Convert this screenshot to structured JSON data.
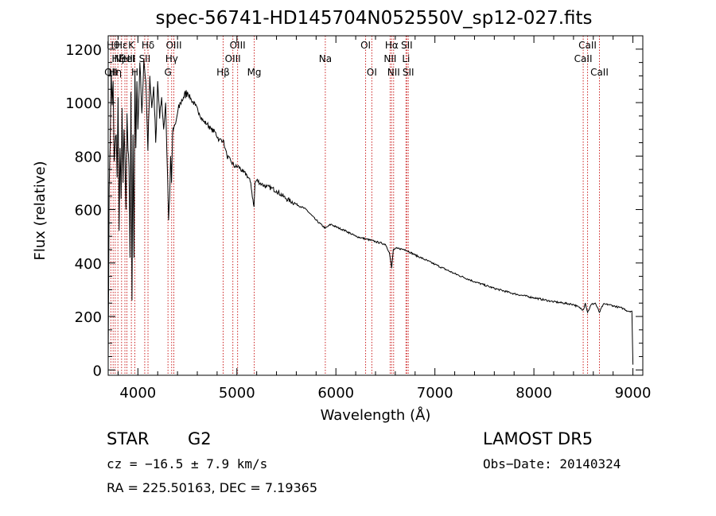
{
  "chart_data": {
    "type": "line",
    "title": "spec-56741-HD145704N052550V_sp12-027.fits",
    "xlabel": "Wavelength (Å)",
    "ylabel": "Flux (relative)",
    "xlim": [
      3700,
      9100
    ],
    "ylim": [
      -20,
      1250
    ],
    "xticks": [
      4000,
      5000,
      6000,
      7000,
      8000,
      9000
    ],
    "yticks": [
      0,
      200,
      400,
      600,
      800,
      1000,
      1200
    ],
    "series": [
      {
        "x": [
          3700,
          3710,
          3720,
          3730,
          3740,
          3750,
          3760,
          3770,
          3780,
          3790,
          3800,
          3810,
          3820,
          3830,
          3840,
          3850,
          3860,
          3870,
          3880,
          3890,
          3900,
          3910,
          3920,
          3930,
          3940,
          3950,
          3960,
          3970,
          3980,
          3990,
          4000,
          4020,
          4040,
          4060,
          4080,
          4101,
          4120,
          4140,
          4160,
          4180,
          4200,
          4220,
          4240,
          4260,
          4280,
          4300,
          4310,
          4320,
          4330,
          4340,
          4350,
          4360,
          4380,
          4400,
          4430,
          4460,
          4500,
          4540,
          4580,
          4620,
          4660,
          4700,
          4740,
          4780,
          4820,
          4861,
          4880,
          4900,
          4940,
          4980,
          5020,
          5060,
          5100,
          5140,
          5167,
          5173,
          5183,
          5200,
          5250,
          5300,
          5350,
          5400,
          5500,
          5600,
          5700,
          5800,
          5893,
          5950,
          6000,
          6100,
          6200,
          6300,
          6400,
          6500,
          6540,
          6563,
          6580,
          6620,
          6700,
          6800,
          7000,
          7200,
          7400,
          7600,
          7800,
          8000,
          8200,
          8400,
          8498,
          8520,
          8542,
          8580,
          8620,
          8662,
          8700,
          8750,
          8800,
          8850,
          8900,
          8950,
          8990,
          9000
        ],
        "y": [
          40,
          680,
          850,
          1120,
          990,
          1080,
          780,
          850,
          880,
          720,
          1020,
          520,
          830,
          640,
          980,
          700,
          900,
          780,
          600,
          960,
          820,
          760,
          420,
          1040,
          260,
          880,
          420,
          1120,
          830,
          1080,
          900,
          1150,
          960,
          1160,
          1080,
          820,
          1100,
          980,
          1060,
          850,
          1080,
          940,
          1020,
          900,
          1000,
          720,
          560,
          640,
          800,
          700,
          880,
          900,
          920,
          960,
          1000,
          1020,
          1040,
          1010,
          990,
          960,
          930,
          920,
          900,
          890,
          860,
          860,
          830,
          800,
          780,
          760,
          760,
          740,
          730,
          700,
          620,
          610,
          700,
          710,
          695,
          685,
          680,
          670,
          640,
          620,
          600,
          560,
          530,
          545,
          535,
          520,
          500,
          490,
          480,
          470,
          440,
          380,
          450,
          455,
          450,
          430,
          395,
          360,
          330,
          305,
          285,
          270,
          255,
          245,
          225,
          250,
          215,
          245,
          250,
          215,
          245,
          245,
          240,
          235,
          230,
          220,
          220,
          20
        ]
      }
    ],
    "lines": [
      {
        "w": 3727,
        "label": "OII",
        "row": 3
      },
      {
        "w": 3750,
        "label": "Hθ",
        "row": 1
      },
      {
        "w": 3771,
        "label": "Hη",
        "row": 3
      },
      {
        "w": 3798,
        "label": "Hζ",
        "row": 2
      },
      {
        "w": 3835,
        "label": "Hε",
        "row": 1
      },
      {
        "w": 3869,
        "label": "NeIII",
        "row": 2
      },
      {
        "w": 3889,
        "label": "HeI",
        "row": 2
      },
      {
        "w": 3934,
        "label": "K",
        "row": 1
      },
      {
        "w": 3969,
        "label": "H",
        "row": 3
      },
      {
        "w": 4102,
        "label": "Hδ",
        "row": 1
      },
      {
        "w": 4069,
        "label": "SII",
        "row": 2
      },
      {
        "w": 4304,
        "label": "G",
        "row": 3
      },
      {
        "w": 4341,
        "label": "Hγ",
        "row": 2
      },
      {
        "w": 4363,
        "label": "OIII",
        "row": 1
      },
      {
        "w": 4861,
        "label": "Hβ",
        "row": 3
      },
      {
        "w": 4959,
        "label": "OIII",
        "row": 2
      },
      {
        "w": 5007,
        "label": "OIII",
        "row": 1
      },
      {
        "w": 5175,
        "label": "Mg",
        "row": 3
      },
      {
        "w": 5893,
        "label": "Na",
        "row": 2
      },
      {
        "w": 6300,
        "label": "OI",
        "row": 1
      },
      {
        "w": 6363,
        "label": "OI",
        "row": 3
      },
      {
        "w": 6548,
        "label": "NII",
        "row": 2
      },
      {
        "w": 6563,
        "label": "Hα",
        "row": 1
      },
      {
        "w": 6583,
        "label": "NII",
        "row": 3
      },
      {
        "w": 6708,
        "label": "Li",
        "row": 2
      },
      {
        "w": 6716,
        "label": "SII",
        "row": 1
      },
      {
        "w": 6731,
        "label": "SII",
        "row": 3
      },
      {
        "w": 8498,
        "label": "CaII",
        "row": 2
      },
      {
        "w": 8542,
        "label": "CaII",
        "row": 1
      },
      {
        "w": 8662,
        "label": "CaII",
        "row": 3
      }
    ],
    "line_color": "#cc2222",
    "series_color": "#000000",
    "grid": false
  },
  "info": {
    "object_type": "STAR",
    "subclass": "G2",
    "survey": "LAMOST DR5",
    "redshift": "cz = −16.5 ± 7.9 km/s",
    "obs_date": "Obs−Date: 20140324",
    "coords": "RA = 225.50163, DEC =   7.19365"
  }
}
